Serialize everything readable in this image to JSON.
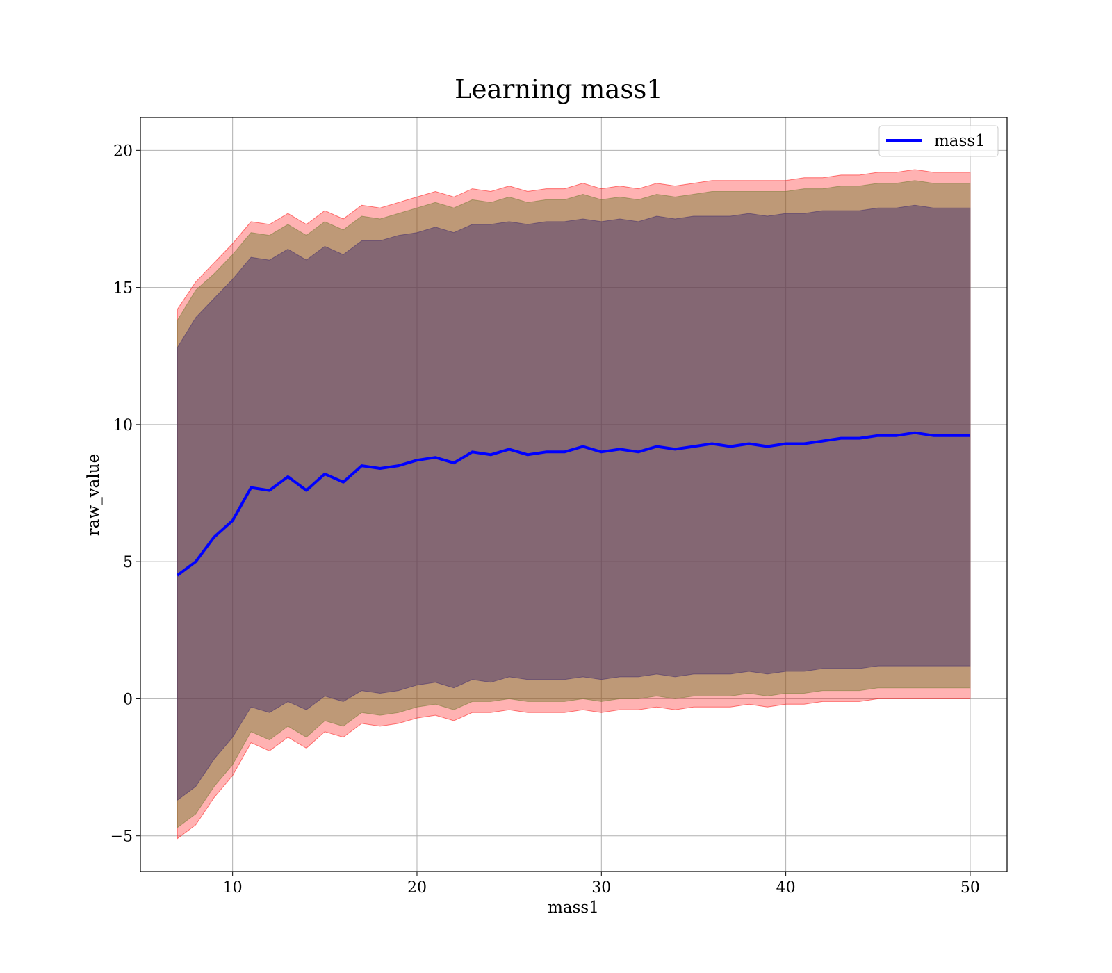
{
  "chart_data": {
    "type": "line",
    "title": "Learning mass1",
    "xlabel": "mass1",
    "ylabel": "raw_value",
    "xlim": [
      5,
      52
    ],
    "ylim": [
      -6.3,
      21.2
    ],
    "xticks": [
      10,
      20,
      30,
      40,
      50
    ],
    "yticks": [
      -5,
      0,
      5,
      10,
      15,
      20
    ],
    "xtick_labels": [
      "10",
      "20",
      "30",
      "40",
      "50"
    ],
    "ytick_labels": [
      "−5",
      "0",
      "5",
      "10",
      "15",
      "20"
    ],
    "grid": true,
    "legend_position": "top-right",
    "series": [
      {
        "name": "mass1",
        "color": "#0000ff",
        "x": [
          7,
          8,
          9,
          10,
          11,
          12,
          13,
          14,
          15,
          16,
          17,
          18,
          19,
          20,
          21,
          22,
          23,
          24,
          25,
          26,
          27,
          28,
          29,
          30,
          31,
          32,
          33,
          34,
          35,
          36,
          37,
          38,
          39,
          40,
          41,
          42,
          43,
          44,
          45,
          46,
          47,
          48,
          49,
          50
        ],
        "y": [
          4.5,
          5.0,
          5.9,
          6.5,
          7.7,
          7.6,
          8.1,
          7.6,
          8.2,
          7.9,
          8.5,
          8.4,
          8.5,
          8.7,
          8.8,
          8.6,
          9.0,
          8.9,
          9.1,
          8.9,
          9.0,
          9.0,
          9.2,
          9.0,
          9.1,
          9.0,
          9.2,
          9.1,
          9.2,
          9.3,
          9.2,
          9.3,
          9.2,
          9.3,
          9.3,
          9.4,
          9.5,
          9.5,
          9.6,
          9.6,
          9.7,
          9.6,
          9.6,
          9.6
        ]
      }
    ],
    "bands": [
      {
        "color": "#ff0000",
        "opacity": 0.3,
        "upper": [
          14.2,
          15.2,
          15.9,
          16.6,
          17.4,
          17.3,
          17.7,
          17.3,
          17.8,
          17.5,
          18.0,
          17.9,
          18.1,
          18.3,
          18.5,
          18.3,
          18.6,
          18.5,
          18.7,
          18.5,
          18.6,
          18.6,
          18.8,
          18.6,
          18.7,
          18.6,
          18.8,
          18.7,
          18.8,
          18.9,
          18.9,
          18.9,
          18.9,
          18.9,
          19.0,
          19.0,
          19.1,
          19.1,
          19.2,
          19.2,
          19.3,
          19.2,
          19.2,
          19.2
        ],
        "lower": [
          -5.1,
          -4.6,
          -3.6,
          -2.8,
          -1.6,
          -1.9,
          -1.4,
          -1.8,
          -1.2,
          -1.4,
          -0.9,
          -1.0,
          -0.9,
          -0.7,
          -0.6,
          -0.8,
          -0.5,
          -0.5,
          -0.4,
          -0.5,
          -0.5,
          -0.5,
          -0.4,
          -0.5,
          -0.4,
          -0.4,
          -0.3,
          -0.4,
          -0.3,
          -0.3,
          -0.3,
          -0.2,
          -0.3,
          -0.2,
          -0.2,
          -0.1,
          -0.1,
          -0.1,
          0.0,
          0.0,
          0.0,
          0.0,
          0.0,
          0.0
        ]
      },
      {
        "color": "#6f7a2e",
        "opacity": 0.45,
        "upper": [
          13.8,
          14.9,
          15.5,
          16.2,
          17.0,
          16.9,
          17.3,
          16.9,
          17.4,
          17.1,
          17.6,
          17.5,
          17.7,
          17.9,
          18.1,
          17.9,
          18.2,
          18.1,
          18.3,
          18.1,
          18.2,
          18.2,
          18.4,
          18.2,
          18.3,
          18.2,
          18.4,
          18.3,
          18.4,
          18.5,
          18.5,
          18.5,
          18.5,
          18.5,
          18.6,
          18.6,
          18.7,
          18.7,
          18.8,
          18.8,
          18.9,
          18.8,
          18.8,
          18.8
        ],
        "lower": [
          -4.7,
          -4.2,
          -3.2,
          -2.4,
          -1.2,
          -1.5,
          -1.0,
          -1.4,
          -0.8,
          -1.0,
          -0.5,
          -0.6,
          -0.5,
          -0.3,
          -0.2,
          -0.4,
          -0.1,
          -0.1,
          0.0,
          -0.1,
          -0.1,
          -0.1,
          0.0,
          -0.1,
          0.0,
          0.0,
          0.1,
          0.0,
          0.1,
          0.1,
          0.1,
          0.2,
          0.1,
          0.2,
          0.2,
          0.3,
          0.3,
          0.3,
          0.4,
          0.4,
          0.4,
          0.4,
          0.4,
          0.4
        ]
      },
      {
        "color": "#3d2a6e",
        "opacity": 0.45,
        "upper": [
          12.8,
          13.9,
          14.6,
          15.3,
          16.1,
          16.0,
          16.4,
          16.0,
          16.5,
          16.2,
          16.7,
          16.7,
          16.9,
          17.0,
          17.2,
          17.0,
          17.3,
          17.3,
          17.4,
          17.3,
          17.4,
          17.4,
          17.5,
          17.4,
          17.5,
          17.4,
          17.6,
          17.5,
          17.6,
          17.6,
          17.6,
          17.7,
          17.6,
          17.7,
          17.7,
          17.8,
          17.8,
          17.8,
          17.9,
          17.9,
          18.0,
          17.9,
          17.9,
          17.9
        ],
        "lower": [
          -3.7,
          -3.2,
          -2.2,
          -1.4,
          -0.3,
          -0.5,
          -0.1,
          -0.4,
          0.1,
          -0.1,
          0.3,
          0.2,
          0.3,
          0.5,
          0.6,
          0.4,
          0.7,
          0.6,
          0.8,
          0.7,
          0.7,
          0.7,
          0.8,
          0.7,
          0.8,
          0.8,
          0.9,
          0.8,
          0.9,
          0.9,
          0.9,
          1.0,
          0.9,
          1.0,
          1.0,
          1.1,
          1.1,
          1.1,
          1.2,
          1.2,
          1.2,
          1.2,
          1.2,
          1.2
        ]
      }
    ]
  }
}
